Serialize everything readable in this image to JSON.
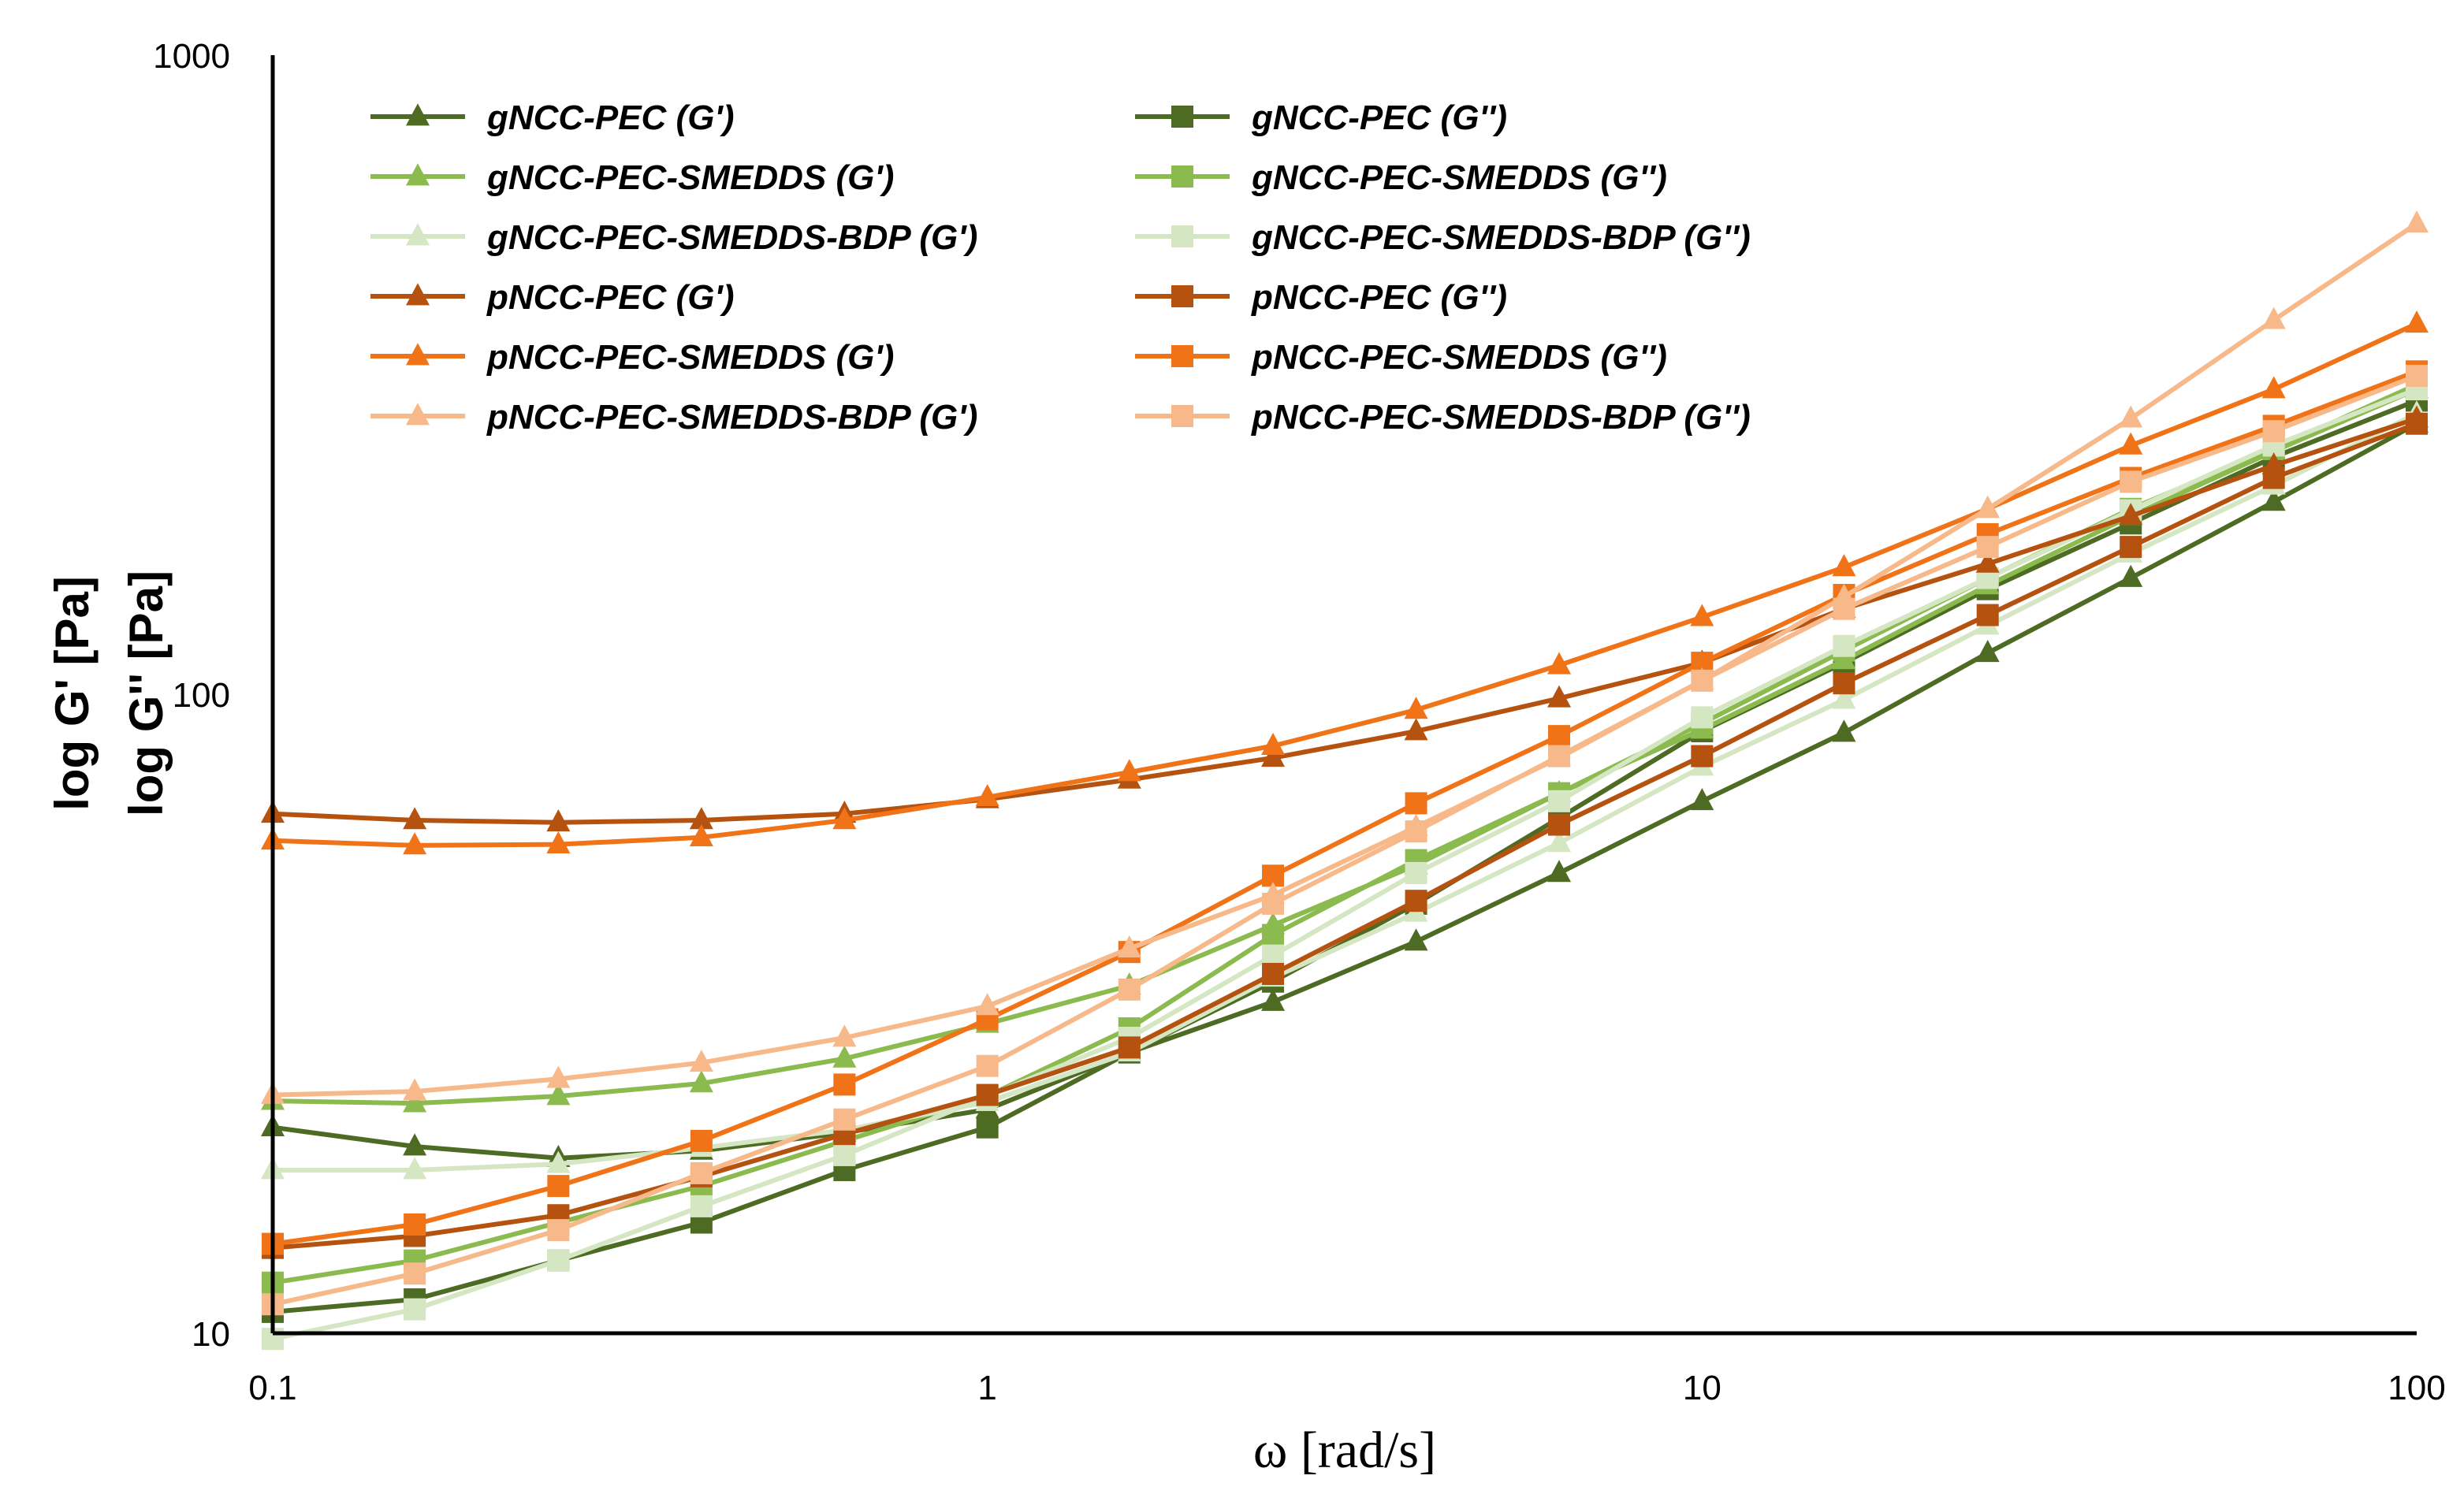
{
  "chart_data": {
    "type": "line",
    "title": "",
    "xlabel": "ω [rad/s]",
    "ylabel": [
      "log G' [Pa]",
      "log G'' [Pa]"
    ],
    "xscale": "log",
    "yscale": "log",
    "xlim": [
      0.1,
      100
    ],
    "ylim": [
      10,
      1000
    ],
    "xticks": [
      0.1,
      1,
      10,
      100
    ],
    "xtick_labels": [
      "0.1",
      "1",
      "10",
      "100"
    ],
    "yticks": [
      10,
      100,
      1000
    ],
    "ytick_labels": [
      "10",
      "100",
      "1000"
    ],
    "grid": false,
    "legend_position": "top-left",
    "x": [
      0.1,
      0.158,
      0.251,
      0.398,
      0.631,
      1,
      1.58,
      2.51,
      3.98,
      6.31,
      10,
      15.8,
      25.1,
      39.8,
      63.1,
      100
    ],
    "series": [
      {
        "name": "gNCC-PEC (G')",
        "marker": "triangle",
        "color": "#4E6B24",
        "values": [
          21,
          19.6,
          18.8,
          19.3,
          20.6,
          22.4,
          27.5,
          33.0,
          41.0,
          52.5,
          68.0,
          87.0,
          116,
          152,
          200,
          265
        ]
      },
      {
        "name": "gNCC-PEC (G'')",
        "marker": "square",
        "color": "#4E6B24",
        "values": [
          10.8,
          11.3,
          13.0,
          14.9,
          18.0,
          21.0,
          27.5,
          35.5,
          47.0,
          64.0,
          87.5,
          112,
          146,
          185,
          235,
          288
        ]
      },
      {
        "name": "gNCC-PEC-SMEDDS (G')",
        "marker": "triangle",
        "color": "#8BBA4F",
        "values": [
          23.1,
          22.9,
          23.5,
          24.6,
          26.9,
          30.5,
          35.0,
          43.5,
          54.0,
          70.0,
          88.0,
          113,
          148,
          190,
          240,
          300
        ]
      },
      {
        "name": "gNCC-PEC-SMEDDS (G'')",
        "marker": "square",
        "color": "#8BBA4F",
        "values": [
          12.0,
          13.0,
          14.9,
          17.0,
          20.0,
          23.5,
          30.0,
          42.0,
          55.0,
          70.0,
          90.0,
          117,
          152,
          195,
          242,
          305
        ]
      },
      {
        "name": "gNCC-PEC-SMEDDS-BDP (G')",
        "marker": "triangle",
        "color": "#D5E6C3",
        "values": [
          18.0,
          18.0,
          18.4,
          19.5,
          20.8,
          23.0,
          27.5,
          36.0,
          45.5,
          58.5,
          77.0,
          98.0,
          128,
          166,
          212,
          275
        ]
      },
      {
        "name": "gNCC-PEC-SMEDDS-BDP (G'')",
        "marker": "square",
        "color": "#D5E6C3",
        "values": [
          9.8,
          10.9,
          13.0,
          15.8,
          19.0,
          23.5,
          29.0,
          39.0,
          52.5,
          68.0,
          92.0,
          119,
          152,
          194,
          245,
          300
        ]
      },
      {
        "name": "pNCC-PEC (G')",
        "marker": "triangle",
        "color": "#B5520F",
        "values": [
          65.0,
          63.5,
          63.0,
          63.5,
          65.0,
          68.5,
          73.5,
          79.5,
          87.5,
          98.5,
          112,
          136,
          160,
          190,
          228,
          270
        ]
      },
      {
        "name": "pNCC-PEC (G'')",
        "marker": "square",
        "color": "#B5520F",
        "values": [
          13.6,
          14.2,
          15.3,
          17.6,
          20.5,
          23.6,
          28.0,
          36.5,
          47.5,
          62.5,
          80.0,
          104,
          133,
          170,
          218,
          265
        ]
      },
      {
        "name": "pNCC-PEC-SMEDDS (G')",
        "marker": "triangle",
        "color": "#F07318",
        "values": [
          59.0,
          58.0,
          58.2,
          59.7,
          63.5,
          69.0,
          75.5,
          83.0,
          94.5,
          111,
          132,
          158,
          195,
          245,
          300,
          380
        ]
      },
      {
        "name": "pNCC-PEC-SMEDDS (G'')",
        "marker": "square",
        "color": "#F07318",
        "values": [
          13.8,
          14.8,
          17.0,
          20.0,
          24.5,
          31.0,
          39.5,
          52.0,
          67.5,
          86.0,
          112,
          143,
          178,
          218,
          263,
          320
        ]
      },
      {
        "name": "pNCC-PEC-SMEDDS-BDP (G')",
        "marker": "triangle",
        "color": "#F7B98A",
        "values": [
          23.6,
          23.9,
          25.0,
          26.5,
          29.0,
          32.5,
          40.0,
          48.5,
          62.0,
          79.5,
          105,
          142,
          195,
          270,
          385,
          545
        ]
      },
      {
        "name": "pNCC-PEC-SMEDDS-BDP (G'')",
        "marker": "square",
        "color": "#F7B98A",
        "values": [
          11.1,
          12.4,
          14.5,
          17.8,
          21.6,
          26.2,
          34.5,
          47.0,
          61.0,
          80.0,
          105,
          136,
          170,
          215,
          258,
          315
        ]
      }
    ]
  }
}
